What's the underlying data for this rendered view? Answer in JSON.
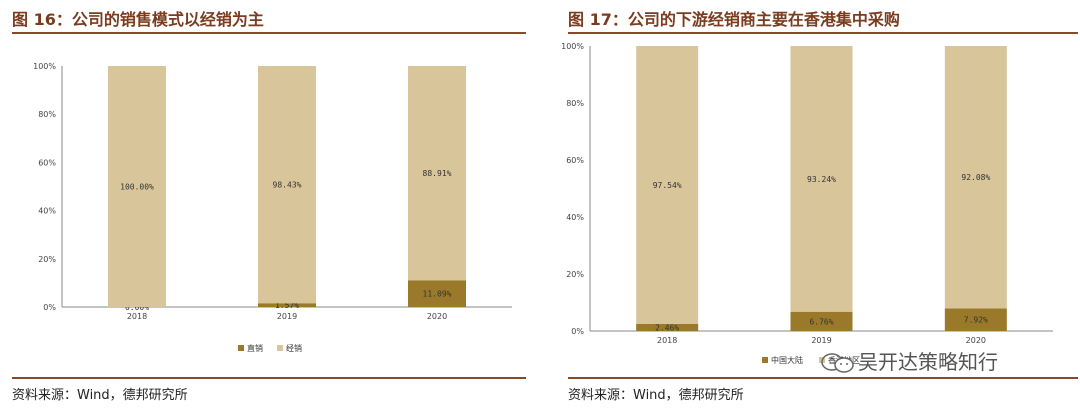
{
  "left": {
    "title": "图 16：公司的销售模式以经销为主",
    "source": "资料来源：Wind，德邦研究所"
  },
  "right": {
    "title": "图 17：公司的下游经销商主要在香港集中采购",
    "source": "资料来源：Wind，德邦研究所"
  },
  "watermark": "吴开达策略知行",
  "colors": {
    "dark": "#9a7a2a",
    "light": "#d8c69a",
    "accent": "#7a3b1e"
  },
  "chart_data": [
    {
      "type": "bar",
      "stacked": true,
      "categories": [
        "2018",
        "2019",
        "2020"
      ],
      "series": [
        {
          "name": "直销",
          "values": [
            0.0,
            1.57,
            11.09
          ],
          "labels": [
            "0.00%",
            "1.57%",
            "11.09%"
          ]
        },
        {
          "name": "经销",
          "values": [
            100.0,
            98.43,
            88.91
          ],
          "labels": [
            "100.00%",
            "98.43%",
            "88.91%"
          ]
        }
      ],
      "ylim": [
        0,
        100
      ],
      "yticks": [
        "0%",
        "20%",
        "40%",
        "60%",
        "80%",
        "100%"
      ],
      "legend": "bottom"
    },
    {
      "type": "bar",
      "stacked": true,
      "categories": [
        "2018",
        "2019",
        "2020"
      ],
      "series": [
        {
          "name": "中国大陆",
          "values": [
            2.46,
            6.76,
            7.92
          ],
          "labels": [
            "2.46%",
            "6.76%",
            "7.92%"
          ]
        },
        {
          "name": "香港地区",
          "values": [
            97.54,
            93.24,
            92.08
          ],
          "labels": [
            "97.54%",
            "93.24%",
            "92.08%"
          ]
        }
      ],
      "ylim": [
        0,
        100
      ],
      "yticks": [
        "0%",
        "20%",
        "40%",
        "60%",
        "80%",
        "100%"
      ],
      "legend": "bottom"
    }
  ]
}
